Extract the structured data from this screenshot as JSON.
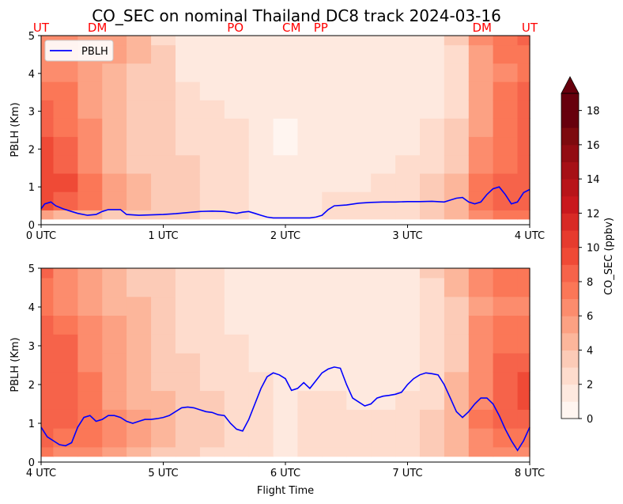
{
  "chart_data": {
    "type": "heatmap",
    "title": "CO_SEC on nominal Thailand DC8 track 2024-03-16",
    "xlabel": "Flight Time",
    "ylabel": "PBLH (Km)",
    "location_labels": [
      {
        "text": "UT",
        "time": 0.0
      },
      {
        "text": "DM",
        "time": 0.46
      },
      {
        "text": "PO",
        "time": 1.59
      },
      {
        "text": "CM",
        "time": 2.05
      },
      {
        "text": "PP",
        "time": 2.29
      },
      {
        "text": "DM",
        "time": 3.61
      },
      {
        "text": "UT",
        "time": 4.0
      }
    ],
    "legend": {
      "label": "PBLH",
      "color": "#0000ff",
      "placement": "upper-left"
    },
    "colorbar": {
      "label": "CO_SEC (ppbv)",
      "ticks": [
        0,
        2,
        4,
        6,
        8,
        10,
        12,
        14,
        16,
        18
      ],
      "levels": [
        0,
        1,
        2,
        3,
        4,
        5,
        6,
        7,
        8,
        9,
        10,
        11,
        12,
        13,
        14,
        15,
        16,
        17,
        18,
        19
      ],
      "colors": [
        "#fff5f0",
        "#fee9df",
        "#fedccd",
        "#fccbb7",
        "#fcb69b",
        "#fca183",
        "#fc8c6d",
        "#fb7757",
        "#f6634a",
        "#ef4a36",
        "#e63b2e",
        "#d82a25",
        "#c9181d",
        "#b81419",
        "#a61016",
        "#920c12",
        "#7d0a0e",
        "#67000d"
      ],
      "extend": "max"
    },
    "panels": [
      {
        "xlim": [
          0,
          4
        ],
        "ylim": [
          0,
          5
        ],
        "x_ticks": [
          "0 UTC",
          "1 UTC",
          "2 UTC",
          "3 UTC",
          "4 UTC"
        ],
        "y_ticks": [
          0,
          1,
          2,
          3,
          4,
          5
        ],
        "pblh": {
          "time": [
            0.0,
            0.03,
            0.08,
            0.12,
            0.18,
            0.25,
            0.3,
            0.38,
            0.45,
            0.5,
            0.55,
            0.6,
            0.65,
            0.7,
            0.8,
            0.9,
            1.0,
            1.1,
            1.2,
            1.3,
            1.4,
            1.5,
            1.6,
            1.65,
            1.7,
            1.75,
            1.8,
            1.85,
            1.9,
            2.0,
            2.1,
            2.2,
            2.25,
            2.3,
            2.35,
            2.4,
            2.5,
            2.6,
            2.7,
            2.8,
            2.9,
            3.0,
            3.1,
            3.2,
            3.3,
            3.35,
            3.4,
            3.45,
            3.5,
            3.55,
            3.6,
            3.65,
            3.7,
            3.75,
            3.8,
            3.85,
            3.9,
            3.95,
            4.0
          ],
          "values": [
            0.42,
            0.55,
            0.6,
            0.5,
            0.42,
            0.35,
            0.3,
            0.25,
            0.27,
            0.35,
            0.4,
            0.4,
            0.4,
            0.27,
            0.25,
            0.26,
            0.27,
            0.29,
            0.32,
            0.35,
            0.36,
            0.35,
            0.3,
            0.33,
            0.35,
            0.3,
            0.25,
            0.2,
            0.18,
            0.18,
            0.18,
            0.18,
            0.2,
            0.25,
            0.4,
            0.5,
            0.52,
            0.57,
            0.59,
            0.6,
            0.6,
            0.61,
            0.61,
            0.62,
            0.6,
            0.65,
            0.7,
            0.72,
            0.6,
            0.55,
            0.6,
            0.8,
            0.95,
            1.0,
            0.8,
            0.55,
            0.6,
            0.85,
            0.93
          ]
        },
        "field": [
          {
            "time": 0.0,
            "values": [
              5,
              9,
              9,
              9,
              9,
              8,
              8,
              7,
              6,
              6,
              6
            ]
          },
          {
            "time": 0.2,
            "values": [
              4,
              8,
              9,
              8,
              8,
              7,
              7,
              7,
              6,
              6,
              6
            ]
          },
          {
            "time": 0.4,
            "values": [
              4,
              7,
              7,
              6,
              6,
              6,
              5,
              5,
              5,
              5,
              5
            ]
          },
          {
            "time": 0.6,
            "values": [
              3,
              5,
              5,
              4,
              4,
              4,
              4,
              4,
              4,
              5,
              5
            ]
          },
          {
            "time": 0.8,
            "values": [
              3,
              4,
              4,
              3,
              3,
              3,
              3,
              3,
              3,
              4,
              4
            ]
          },
          {
            "time": 1.0,
            "values": [
              3,
              3,
              3,
              3,
              3,
              3,
              3,
              3,
              3,
              3,
              2
            ]
          },
          {
            "time": 1.2,
            "values": [
              3,
              3,
              3,
              3,
              2,
              2,
              2,
              2,
              1,
              1,
              1
            ]
          },
          {
            "time": 1.4,
            "values": [
              2,
              2,
              2,
              2,
              2,
              2,
              2,
              1,
              1,
              1,
              1
            ]
          },
          {
            "time": 1.6,
            "values": [
              2,
              2,
              2,
              2,
              2,
              2,
              1,
              1,
              1,
              1,
              1
            ]
          },
          {
            "time": 1.8,
            "values": [
              1,
              1,
              1,
              1,
              1,
              1,
              1,
              1,
              1,
              1,
              1
            ]
          },
          {
            "time": 2.0,
            "values": [
              1,
              1,
              1,
              1,
              0,
              0,
              1,
              1,
              1,
              1,
              1
            ]
          },
          {
            "time": 2.2,
            "values": [
              1,
              1,
              1,
              1,
              1,
              1,
              1,
              1,
              1,
              1,
              1
            ]
          },
          {
            "time": 2.4,
            "values": [
              2,
              2,
              1,
              1,
              1,
              1,
              1,
              1,
              1,
              1,
              1
            ]
          },
          {
            "time": 2.6,
            "values": [
              2,
              2,
              1,
              1,
              1,
              1,
              1,
              1,
              1,
              1,
              1
            ]
          },
          {
            "time": 2.8,
            "values": [
              2,
              2,
              2,
              1,
              1,
              1,
              1,
              1,
              1,
              1,
              1
            ]
          },
          {
            "time": 3.0,
            "values": [
              2,
              2,
              2,
              2,
              1,
              1,
              1,
              1,
              1,
              1,
              1
            ]
          },
          {
            "time": 3.2,
            "values": [
              3,
              3,
              3,
              2,
              2,
              2,
              1,
              1,
              1,
              1,
              1
            ]
          },
          {
            "time": 3.4,
            "values": [
              4,
              4,
              4,
              3,
              3,
              3,
              2,
              2,
              2,
              2,
              3
            ]
          },
          {
            "time": 3.6,
            "values": [
              6,
              7,
              7,
              6,
              6,
              5,
              5,
              5,
              5,
              5,
              6
            ]
          },
          {
            "time": 3.8,
            "values": [
              7,
              8,
              8,
              7,
              7,
              7,
              7,
              7,
              6,
              7,
              7
            ]
          },
          {
            "time": 4.0,
            "values": [
              7,
              8,
              8,
              8,
              8,
              8,
              8,
              8,
              7,
              7,
              8
            ]
          }
        ]
      },
      {
        "xlim": [
          4,
          8
        ],
        "ylim": [
          0,
          5
        ],
        "x_ticks": [
          "4 UTC",
          "5 UTC",
          "6 UTC",
          "7 UTC",
          "8 UTC"
        ],
        "y_ticks": [
          0,
          1,
          2,
          3,
          4,
          5
        ],
        "pblh": {
          "time": [
            4.0,
            4.05,
            4.1,
            4.15,
            4.2,
            4.25,
            4.3,
            4.35,
            4.4,
            4.45,
            4.5,
            4.55,
            4.6,
            4.65,
            4.7,
            4.75,
            4.8,
            4.85,
            4.9,
            4.95,
            5.0,
            5.05,
            5.1,
            5.15,
            5.2,
            5.25,
            5.3,
            5.35,
            5.4,
            5.45,
            5.5,
            5.55,
            5.6,
            5.65,
            5.7,
            5.75,
            5.8,
            5.85,
            5.9,
            5.95,
            6.0,
            6.05,
            6.1,
            6.15,
            6.2,
            6.25,
            6.3,
            6.35,
            6.4,
            6.45,
            6.5,
            6.55,
            6.6,
            6.65,
            6.7,
            6.75,
            6.8,
            6.85,
            6.9,
            6.95,
            7.0,
            7.05,
            7.1,
            7.15,
            7.2,
            7.25,
            7.3,
            7.35,
            7.4,
            7.45,
            7.5,
            7.55,
            7.6,
            7.65,
            7.7,
            7.75,
            7.8,
            7.85,
            7.9,
            7.95,
            8.0
          ],
          "values": [
            0.9,
            0.65,
            0.55,
            0.45,
            0.42,
            0.5,
            0.9,
            1.15,
            1.2,
            1.05,
            1.1,
            1.2,
            1.2,
            1.15,
            1.05,
            1.0,
            1.05,
            1.1,
            1.1,
            1.12,
            1.15,
            1.2,
            1.3,
            1.4,
            1.42,
            1.4,
            1.35,
            1.3,
            1.28,
            1.22,
            1.2,
            1.0,
            0.85,
            0.8,
            1.1,
            1.5,
            1.9,
            2.2,
            2.3,
            2.25,
            2.15,
            1.85,
            1.9,
            2.05,
            1.9,
            2.1,
            2.3,
            2.4,
            2.45,
            2.42,
            2.0,
            1.65,
            1.55,
            1.45,
            1.5,
            1.65,
            1.7,
            1.72,
            1.75,
            1.8,
            2.0,
            2.15,
            2.25,
            2.3,
            2.28,
            2.25,
            2.0,
            1.65,
            1.3,
            1.15,
            1.3,
            1.5,
            1.65,
            1.65,
            1.5,
            1.2,
            0.85,
            0.55,
            0.3,
            0.55,
            0.9
          ]
        },
        "field": [
          {
            "time": 4.0,
            "values": [
              7,
              8,
              8,
              8,
              8,
              8,
              8,
              8,
              7,
              7,
              8
            ]
          },
          {
            "time": 4.2,
            "values": [
              6,
              7,
              8,
              8,
              8,
              8,
              8,
              7,
              6,
              6,
              6
            ]
          },
          {
            "time": 4.4,
            "values": [
              6,
              7,
              7,
              7,
              7,
              6,
              6,
              6,
              5,
              5,
              5
            ]
          },
          {
            "time": 4.6,
            "values": [
              5,
              6,
              6,
              5,
              5,
              5,
              5,
              5,
              4,
              4,
              4
            ]
          },
          {
            "time": 4.8,
            "values": [
              4,
              5,
              5,
              4,
              4,
              4,
              4,
              4,
              4,
              3,
              3
            ]
          },
          {
            "time": 5.0,
            "values": [
              3,
              4,
              4,
              4,
              3,
              3,
              3,
              3,
              3,
              3,
              3
            ]
          },
          {
            "time": 5.2,
            "values": [
              3,
              3,
              3,
              3,
              3,
              3,
              2,
              2,
              2,
              2,
              2
            ]
          },
          {
            "time": 5.4,
            "values": [
              2,
              3,
              3,
              3,
              2,
              2,
              2,
              2,
              2,
              2,
              2
            ]
          },
          {
            "time": 5.6,
            "values": [
              2,
              2,
              2,
              2,
              2,
              2,
              2,
              1,
              1,
              1,
              1
            ]
          },
          {
            "time": 5.8,
            "values": [
              2,
              2,
              2,
              2,
              2,
              1,
              1,
              1,
              1,
              1,
              1
            ]
          },
          {
            "time": 6.0,
            "values": [
              1,
              1,
              1,
              1,
              1,
              1,
              1,
              1,
              1,
              1,
              1
            ]
          },
          {
            "time": 6.2,
            "values": [
              2,
              2,
              2,
              2,
              1,
              1,
              1,
              1,
              1,
              1,
              1
            ]
          },
          {
            "time": 6.4,
            "values": [
              2,
              2,
              2,
              2,
              1,
              1,
              1,
              1,
              1,
              1,
              1
            ]
          },
          {
            "time": 6.6,
            "values": [
              2,
              2,
              2,
              1,
              1,
              1,
              1,
              1,
              1,
              1,
              1
            ]
          },
          {
            "time": 6.8,
            "values": [
              2,
              2,
              2,
              1,
              1,
              1,
              1,
              1,
              1,
              1,
              1
            ]
          },
          {
            "time": 7.0,
            "values": [
              2,
              2,
              2,
              2,
              1,
              1,
              1,
              1,
              1,
              1,
              1
            ]
          },
          {
            "time": 7.2,
            "values": [
              3,
              3,
              3,
              2,
              2,
              2,
              2,
              2,
              2,
              2,
              3
            ]
          },
          {
            "time": 7.4,
            "values": [
              4,
              4,
              4,
              4,
              4,
              3,
              3,
              3,
              3,
              4,
              4
            ]
          },
          {
            "time": 7.6,
            "values": [
              6,
              6,
              7,
              6,
              6,
              6,
              6,
              6,
              5,
              6,
              6
            ]
          },
          {
            "time": 7.8,
            "values": [
              6,
              7,
              8,
              8,
              8,
              8,
              7,
              7,
              6,
              7,
              7
            ]
          },
          {
            "time": 8.0,
            "values": [
              6,
              7,
              8,
              9,
              9,
              8,
              7,
              7,
              6,
              7,
              7
            ]
          }
        ]
      }
    ]
  }
}
